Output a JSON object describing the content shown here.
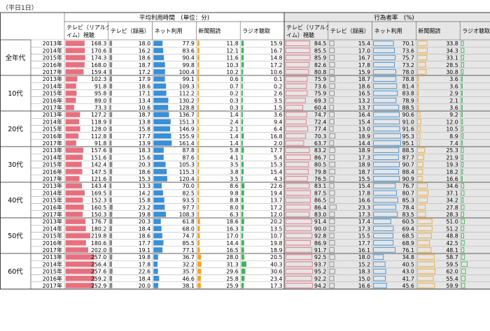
{
  "note": "（平日1日）",
  "header": {
    "group_left": "平均利用時間　(単位：分)",
    "group_right": "行為者率　(%)",
    "columns": [
      "テレビ（リアルタイム）視聴",
      "テレビ（録画）",
      "ネット利用",
      "新聞閲読",
      "ラジオ聴取"
    ]
  },
  "colors": {
    "tv_live": "#e8707e",
    "tv_rec": "#8a8a8a",
    "net": "#3b8fd6",
    "paper": "#f5a623",
    "radio": "#3fb45a",
    "header_left": "#ffffff",
    "header_right": "#e6e6e6",
    "right_bg": "#e6e6e6"
  },
  "chart_data": {
    "type": "table",
    "groups": [
      {
        "label": "全年代",
        "rows": [
          {
            "year": "2013年",
            "time": [
              168.3,
              18.0,
              77.9,
              11.8,
              15.9
            ],
            "rate": [
              84.5,
              15.4,
              70.1,
              33.8,
              7.3
            ]
          },
          {
            "year": "2014年",
            "time": [
              170.6,
              16.2,
              83.6,
              12.1,
              16.7
            ],
            "rate": [
              85.5,
              17.0,
              73.6,
              34.3,
              9.0
            ]
          },
          {
            "year": "2015年",
            "time": [
              174.3,
              18.6,
              90.4,
              11.6,
              14.8
            ],
            "rate": [
              85.9,
              16.7,
              75.7,
              33.1,
              7.8
            ]
          },
          {
            "year": "2016年",
            "time": [
              168.0,
              18.7,
              99.8,
              10.3,
              17.2
            ],
            "rate": [
              82.6,
              17.8,
              73.2,
              28.5,
              8.3
            ]
          },
          {
            "year": "2017年",
            "time": [
              159.4,
              17.2,
              100.4,
              10.2,
              10.6
            ],
            "rate": [
              80.8,
              15.9,
              78.0,
              30.8,
              6.2
            ]
          }
        ]
      },
      {
        "label": "10代",
        "rows": [
          {
            "year": "2013年",
            "time": [
              102.3,
              17.9,
              99.1,
              0.6,
              0.1
            ],
            "rate": [
              75.9,
              18.7,
              78.8,
              3.6,
              1.4
            ]
          },
          {
            "year": "2014年",
            "time": [
              91.8,
              18.6,
              109.3,
              0.7,
              0.2
            ],
            "rate": [
              73.6,
              18.6,
              81.4,
              3.6,
              1.4
            ]
          },
          {
            "year": "2015年",
            "time": [
              95.8,
              17.1,
              112.2,
              0.2,
              2.6
            ],
            "rate": [
              75.9,
              16.5,
              83.8,
              2.9,
              2.9
            ]
          },
          {
            "year": "2016年",
            "time": [
              89.0,
              13.4,
              130.2,
              0.3,
              3.5
            ],
            "rate": [
              69.3,
              13.2,
              78.9,
              2.1,
              2.1
            ]
          },
          {
            "year": "2017年",
            "time": [
              73.3,
              10.6,
              128.8,
              0.3,
              1.5
            ],
            "rate": [
              60.4,
              13.7,
              88.5,
              3.6,
              1.4
            ]
          }
        ]
      },
      {
        "label": "20代",
        "rows": [
          {
            "year": "2013年",
            "time": [
              127.2,
              18.7,
              136.7,
              1.4,
              3.6
            ],
            "rate": [
              74.7,
              16.4,
              90.6,
              9.2,
              2.2
            ]
          },
          {
            "year": "2014年",
            "time": [
              118.9,
              13.8,
              151.3,
              2.4,
              9.4
            ],
            "rate": [
              72.4,
              15.4,
              91.0,
              12.0,
              3.8
            ]
          },
          {
            "year": "2015年",
            "time": [
              128.0,
              15.8,
              146.9,
              2.1,
              6.4
            ],
            "rate": [
              77.4,
              13.0,
              91.6,
              10.5,
              5.3
            ]
          },
          {
            "year": "2016年",
            "time": [
              112.8,
              17.7,
              155.9,
              1.4,
              16.8
            ],
            "rate": [
              70.3,
              18.9,
              95.3,
              8.9,
              6.4
            ]
          },
          {
            "year": "2017年",
            "time": [
              91.8,
              13.9,
              161.4,
              1.4,
              2.0
            ],
            "rate": [
              63.7,
              14.4,
              95.1,
              7.4,
              3.0
            ]
          }
        ]
      },
      {
        "label": "30代",
        "rows": [
          {
            "year": "2013年",
            "time": [
              157.6,
              18.3,
              87.8,
              5.8,
              17.7
            ],
            "rate": [
              83.2,
              18.9,
              88.5,
              25.3,
              7.0
            ]
          },
          {
            "year": "2014年",
            "time": [
              151.6,
              15.6,
              87.6,
              4.1,
              5.4
            ],
            "rate": [
              86.7,
              17.3,
              87.7,
              21.9,
              5.7
            ]
          },
          {
            "year": "2015年",
            "time": [
              142.4,
              20.3,
              105.3,
              3.5,
              15.3
            ],
            "rate": [
              80.5,
              18.9,
              90.7,
              19.3,
              6.4
            ]
          },
          {
            "year": "2016年",
            "time": [
              147.5,
              18.6,
              115.3,
              3.8,
              15.4
            ],
            "rate": [
              79.8,
              18.7,
              88.4,
              18.2,
              4.1
            ]
          },
          {
            "year": "2017年",
            "time": [
              121.6,
              15.3,
              120.4,
              3.5,
              4.3
            ],
            "rate": [
              76.5,
              15.5,
              90.9,
              16.6,
              2.3
            ]
          }
        ]
      },
      {
        "label": "40代",
        "rows": [
          {
            "year": "2013年",
            "time": [
              143.4,
              13.3,
              70.0,
              8.6,
              22.6
            ],
            "rate": [
              83.1,
              15.4,
              76.7,
              34.6,
              8.3
            ]
          },
          {
            "year": "2014年",
            "time": [
              169.5,
              14.2,
              82.5,
              9.8,
              19.4
            ],
            "rate": [
              87.5,
              17.8,
              80.7,
              37.1,
              9.3
            ]
          },
          {
            "year": "2015年",
            "time": [
              152.3,
              15.8,
              93.5,
              8.8,
              13.7
            ],
            "rate": [
              86.5,
              16.6,
              85.3,
              34.2,
              6.5
            ]
          },
          {
            "year": "2016年",
            "time": [
              160.5,
              23.2,
              97.7,
              8.0,
              17.2
            ],
            "rate": [
              86.4,
              23.3,
              78.4,
              27.8,
              9.3
            ]
          },
          {
            "year": "2017年",
            "time": [
              150.3,
              19.8,
              108.3,
              6.3,
              12.0
            ],
            "rate": [
              83.0,
              17.3,
              83.5,
              28.3,
              7.9
            ]
          }
        ]
      },
      {
        "label": "50代",
        "rows": [
          {
            "year": "2013年",
            "time": [
              176.7,
              20.3,
              61.8,
              18.6,
              20.2
            ],
            "rate": [
              91.4,
              17.4,
              60.5,
              51.0,
              10.4
            ]
          },
          {
            "year": "2014年",
            "time": [
              180.2,
              18.4,
              68.0,
              16.3,
              13.5
            ],
            "rate": [
              90.0,
              17.3,
              69.4,
              51.2,
              8.6
            ]
          },
          {
            "year": "2015年",
            "time": [
              219.8,
              18.6,
              74.7,
              17.0,
              10.7
            ],
            "rate": [
              92.8,
              15.5,
              68.5,
              48.8,
              8.0
            ]
          },
          {
            "year": "2016年",
            "time": [
              180.6,
              17.7,
              85.5,
              14.4,
              19.8
            ],
            "rate": [
              86.9,
              17.7,
              68.9,
              42.5,
              9.9
            ]
          },
          {
            "year": "2017年",
            "time": [
              202.0,
              19.1,
              77.1,
              16.5,
              18.9
            ],
            "rate": [
              91.7,
              16.1,
              76.1,
              48.1,
              8.6
            ]
          }
        ]
      },
      {
        "label": "60代",
        "rows": [
          {
            "year": "2013年",
            "time": [
              257.0,
              19.8,
              36.7,
              28.0,
              20.5
            ],
            "rate": [
              92.5,
              18.0,
              34.8,
              58.7,
              11.2
            ]
          },
          {
            "year": "2014年",
            "time": [
              256.4,
              17.8,
              32.2,
              31.3,
              40.3
            ],
            "rate": [
              93.7,
              15.2,
              40.5,
              59.5,
              20.5
            ]
          },
          {
            "year": "2015年",
            "time": [
              257.6,
              22.6,
              35.7,
              29.6,
              30.6
            ],
            "rate": [
              95.2,
              18.3,
              43.0,
              62.0,
              14.5
            ]
          },
          {
            "year": "2016年",
            "time": [
              259.2,
              18.4,
              46.6,
              25.8,
              23.4
            ],
            "rate": [
              92.2,
              15.0,
              41.7,
              55.4,
              13.2
            ]
          },
          {
            "year": "2017年",
            "time": [
              252.9,
              20.0,
              38.1,
              25.9,
              17.3
            ],
            "rate": [
              94.2,
              16.6,
              45.6,
              59.9,
              11.7
            ]
          }
        ]
      }
    ],
    "time_scale_max": 260,
    "rate_scale_max": 100
  }
}
